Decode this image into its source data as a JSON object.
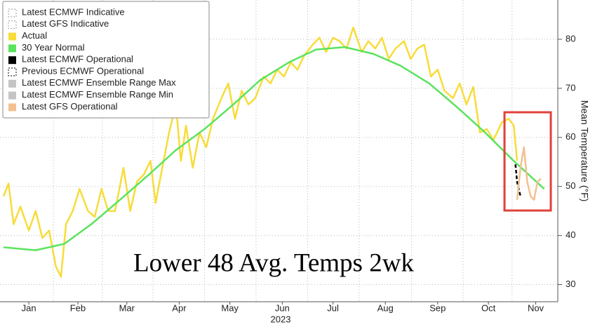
{
  "chart_data": {
    "type": "line",
    "title": "Lower 48 Avg. Temps 2wk",
    "x_label": "2023",
    "y_label": "Mean Temperature (°F)",
    "xlim": [
      1,
      327
    ],
    "ylim": [
      26.5,
      88
    ],
    "xticks": [
      {
        "value": 16,
        "label": "Jan"
      },
      {
        "value": 45,
        "label": "Feb"
      },
      {
        "value": 74,
        "label": "Mar"
      },
      {
        "value": 105,
        "label": "Apr"
      },
      {
        "value": 135,
        "label": "May"
      },
      {
        "value": 166,
        "label": "Jun"
      },
      {
        "value": 196,
        "label": "Jul"
      },
      {
        "value": 227,
        "label": "Aug"
      },
      {
        "value": 258,
        "label": "Sep"
      },
      {
        "value": 288,
        "label": "Oct"
      },
      {
        "value": 316,
        "label": "Nov"
      }
    ],
    "yticks": [
      30,
      40,
      50,
      60,
      70,
      80
    ],
    "grid": true,
    "legend": "top-left",
    "series": [
      {
        "name": "Latest ECMWF Indicative",
        "color": "#ffffff",
        "style": "dashed",
        "x": [],
        "values": []
      },
      {
        "name": "Latest GFS Indicative",
        "color": "#ffffff",
        "style": "dashed",
        "x": [],
        "values": []
      },
      {
        "name": "Actual",
        "color": "#f7dc3a",
        "style": "solid",
        "x": [
          1,
          4,
          7,
          11,
          16,
          20,
          24,
          28,
          32,
          35,
          38,
          42,
          46,
          51,
          55,
          59,
          63,
          67,
          72,
          76,
          80,
          84,
          88,
          91,
          95,
          99,
          103,
          106,
          109,
          113,
          117,
          121,
          125,
          130,
          134,
          138,
          142,
          146,
          150,
          155,
          159,
          163,
          167,
          171,
          175,
          179,
          184,
          188,
          192,
          196,
          200,
          204,
          208,
          213,
          217,
          221,
          225,
          229,
          233,
          238,
          242,
          246,
          250,
          254,
          258,
          262,
          267,
          271,
          275,
          279,
          283,
          287,
          291,
          296,
          300,
          303,
          305
        ],
        "values": [
          48,
          50.6,
          42.3,
          45.9,
          41,
          45,
          39.5,
          41,
          33.7,
          31.6,
          42.3,
          45,
          49.5,
          45,
          43.8,
          49.5,
          45,
          45,
          53.8,
          45,
          51,
          52.4,
          55.2,
          46.6,
          53.8,
          61,
          66.7,
          55.2,
          62.4,
          53.8,
          61,
          58,
          63.8,
          68,
          71,
          63.8,
          69.5,
          66.7,
          68,
          72.4,
          71,
          73.8,
          72.4,
          75.3,
          73.8,
          76.7,
          78.9,
          80.3,
          77.4,
          80.3,
          79.6,
          78.1,
          82.4,
          77.4,
          79.6,
          78.1,
          80.3,
          76,
          78.1,
          79.6,
          76,
          78.1,
          78.9,
          72.4,
          73.8,
          69.5,
          68,
          71,
          66.7,
          70.3,
          61,
          61.7,
          59.5,
          63.1,
          63.8,
          62.4,
          55.2
        ]
      },
      {
        "name": "30 Year Normal",
        "color": "#5be35e",
        "style": "solid",
        "x": [
          1,
          20,
          37,
          53,
          70,
          87,
          103,
          120,
          137,
          153,
          170,
          186,
          203,
          220,
          236,
          253,
          270,
          286,
          303,
          321
        ],
        "values": [
          37.6,
          37,
          38.3,
          42.3,
          47.3,
          52.4,
          57.4,
          61.7,
          66.7,
          71.7,
          75.3,
          77.9,
          78.4,
          77,
          74.6,
          71,
          66,
          61,
          55.2,
          49.5
        ]
      },
      {
        "name": "Latest ECMWF Operational",
        "color": "#000000",
        "style": "solid",
        "x": [],
        "values": []
      },
      {
        "name": "Previous ECMWF Operational",
        "color": "#000000",
        "style": "dashed",
        "x": [
          304,
          305,
          307
        ],
        "values": [
          54.5,
          50.9,
          48
        ]
      },
      {
        "name": "Latest ECMWF Ensemble Range Max",
        "color": "#c4c4c4",
        "style": "solid",
        "x": [],
        "values": []
      },
      {
        "name": "Latest ECMWF Ensemble Range Min",
        "color": "#c4c4c4",
        "style": "solid",
        "x": [],
        "values": []
      },
      {
        "name": "Latest GFS Operational",
        "color": "#f3c08f",
        "style": "solid",
        "x": [
          305,
          307,
          309,
          311,
          313,
          315,
          317,
          319
        ],
        "values": [
          47.3,
          53.8,
          58,
          50.9,
          48,
          47.3,
          50.9,
          51.6
        ]
      }
    ]
  }
}
